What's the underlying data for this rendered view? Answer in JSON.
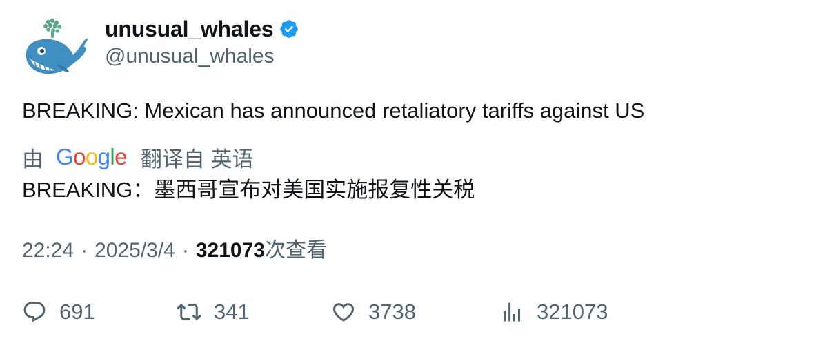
{
  "author": {
    "display_name": "unusual_whales",
    "handle": "@unusual_whales",
    "verified": true,
    "verified_color": "#1d9bf0",
    "avatar_icon": "whale-avatar-icon"
  },
  "tweet": {
    "text": "BREAKING: Mexican has announced retaliatory tariffs against US",
    "translation": {
      "by_label": "由",
      "provider": "Google",
      "from_label": "翻译自 英语",
      "text": "BREAKING：墨西哥宣布对美国实施报复性关税"
    },
    "time": "22:24",
    "date": "2025/3/4",
    "separator": "·",
    "views_count": "321073",
    "views_label": "次查看"
  },
  "actions": {
    "replies": "691",
    "retweets": "341",
    "likes": "3738",
    "views": "321073"
  },
  "colors": {
    "text": "#0f1419",
    "secondary": "#536471",
    "google_blue": "#4285F4",
    "google_red": "#EA4335",
    "google_yellow": "#FBBC05",
    "google_green": "#34A853"
  }
}
